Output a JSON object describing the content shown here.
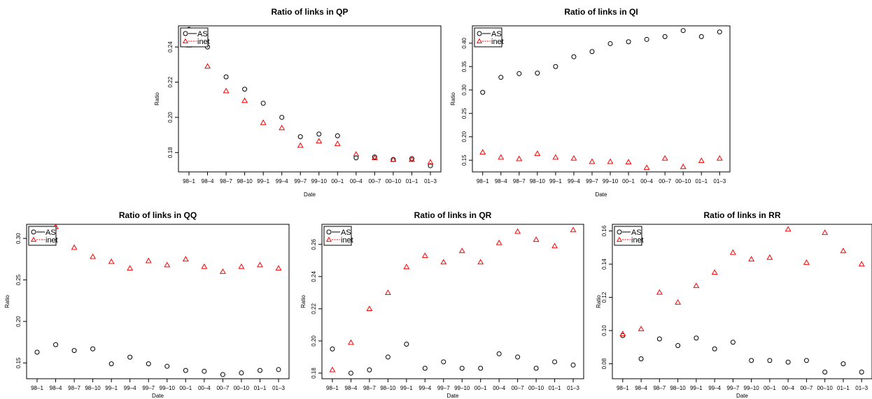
{
  "chart_data": [
    {
      "type": "scatter",
      "title": "Ratio of links in QP",
      "xlabel": "Date",
      "ylabel": "Ratio",
      "categories": [
        "98–1",
        "98–4",
        "98–7",
        "98–10",
        "99–1",
        "99–4",
        "99–7",
        "99–10",
        "00–1",
        "00–4",
        "00–7",
        "00–10",
        "01–1",
        "01–3"
      ],
      "yticks": [
        0.18,
        0.2,
        0.22,
        0.24
      ],
      "ylim": [
        0.169,
        0.252
      ],
      "legend": "top-left",
      "series": [
        {
          "name": "AS",
          "color": "#000000",
          "marker": "circle",
          "values": [
            0.25,
            0.24,
            0.223,
            0.216,
            0.208,
            0.2,
            0.189,
            0.1905,
            0.1895,
            0.177,
            0.1775,
            0.176,
            0.1765,
            0.1725
          ]
        },
        {
          "name": "inet",
          "color": "#ff0000",
          "marker": "triangle",
          "values": [
            0.241,
            0.229,
            0.215,
            0.2095,
            0.197,
            0.194,
            0.184,
            0.1865,
            0.185,
            0.179,
            0.177,
            0.176,
            0.176,
            0.1745
          ]
        }
      ]
    },
    {
      "type": "scatter",
      "title": "Ratio of links in QI",
      "xlabel": "Date",
      "ylabel": "Ratio",
      "categories": [
        "98–1",
        "98–4",
        "98–7",
        "98–10",
        "99–1",
        "99–4",
        "99–7",
        "99–10",
        "00–1",
        "00–4",
        "00–7",
        "00–10",
        "01–1",
        "01–3"
      ],
      "yticks": [
        0.15,
        0.2,
        0.25,
        0.3,
        0.35,
        0.4
      ],
      "ylim": [
        0.125,
        0.437
      ],
      "legend": "top-left",
      "series": [
        {
          "name": "AS",
          "color": "#000000",
          "marker": "circle",
          "values": [
            0.295,
            0.327,
            0.335,
            0.336,
            0.35,
            0.371,
            0.382,
            0.399,
            0.403,
            0.408,
            0.414,
            0.427,
            0.414,
            0.424
          ]
        },
        {
          "name": "inet",
          "color": "#ff0000",
          "marker": "triangle",
          "values": [
            0.167,
            0.156,
            0.153,
            0.164,
            0.156,
            0.154,
            0.147,
            0.147,
            0.146,
            0.134,
            0.154,
            0.136,
            0.149,
            0.154
          ]
        }
      ]
    },
    {
      "type": "scatter",
      "title": "Ratio of links in QQ",
      "xlabel": "Date",
      "ylabel": "Ratio",
      "categories": [
        "98–1",
        "98–4",
        "98–7",
        "98–10",
        "99–1",
        "99–4",
        "99–7",
        "99–10",
        "00–1",
        "00–4",
        "00–7",
        "00–10",
        "01–1",
        "01–3"
      ],
      "yticks": [
        0.15,
        0.2,
        0.25,
        0.3
      ],
      "ylim": [
        0.131,
        0.317
      ],
      "legend": "top-left",
      "series": [
        {
          "name": "AS",
          "color": "#000000",
          "marker": "circle",
          "values": [
            0.163,
            0.172,
            0.165,
            0.167,
            0.149,
            0.157,
            0.149,
            0.146,
            0.141,
            0.14,
            0.136,
            0.138,
            0.141,
            0.142
          ]
        },
        {
          "name": "inet",
          "color": "#ff0000",
          "marker": "triangle",
          "values": [
            0.309,
            0.314,
            0.289,
            0.278,
            0.272,
            0.264,
            0.273,
            0.268,
            0.275,
            0.266,
            0.26,
            0.266,
            0.268,
            0.264
          ]
        }
      ]
    },
    {
      "type": "scatter",
      "title": "Ratio of links in QR",
      "xlabel": "Date",
      "ylabel": "Ratio",
      "categories": [
        "98–1",
        "98–4",
        "98–7",
        "98–10",
        "99–1",
        "99–4",
        "99–7",
        "99–10",
        "00–1",
        "00–4",
        "00–7",
        "00–10",
        "01–1",
        "01–3"
      ],
      "yticks": [
        0.18,
        0.2,
        0.22,
        0.24,
        0.26
      ],
      "ylim": [
        0.1765,
        0.2725
      ],
      "legend": "top-left",
      "series": [
        {
          "name": "AS",
          "color": "#000000",
          "marker": "circle",
          "values": [
            0.195,
            0.18,
            0.182,
            0.19,
            0.198,
            0.183,
            0.187,
            0.183,
            0.183,
            0.192,
            0.19,
            0.183,
            0.187,
            0.185
          ]
        },
        {
          "name": "inet",
          "color": "#ff0000",
          "marker": "triangle",
          "values": [
            0.182,
            0.199,
            0.22,
            0.23,
            0.246,
            0.253,
            0.249,
            0.256,
            0.249,
            0.261,
            0.268,
            0.263,
            0.259,
            0.269
          ]
        }
      ]
    },
    {
      "type": "scatter",
      "title": "Ratio of links in RR",
      "xlabel": "Date",
      "ylabel": "Ratio",
      "categories": [
        "98–1",
        "98–4",
        "98–7",
        "98–10",
        "99–1",
        "99–4",
        "99–7",
        "99–10",
        "00–1",
        "00–4",
        "00–7",
        "00–10",
        "01–1",
        "01–3"
      ],
      "yticks": [
        0.08,
        0.1,
        0.12,
        0.14,
        0.16
      ],
      "ylim": [
        0.071,
        0.164
      ],
      "legend": "top-left",
      "series": [
        {
          "name": "AS",
          "color": "#000000",
          "marker": "circle",
          "values": [
            0.097,
            0.083,
            0.095,
            0.091,
            0.0955,
            0.089,
            0.093,
            0.082,
            0.082,
            0.081,
            0.082,
            0.075,
            0.08,
            0.075
          ]
        },
        {
          "name": "inet",
          "color": "#ff0000",
          "marker": "triangle",
          "values": [
            0.098,
            0.101,
            0.123,
            0.117,
            0.127,
            0.135,
            0.147,
            0.143,
            0.144,
            0.161,
            0.141,
            0.159,
            0.148,
            0.14
          ]
        }
      ]
    }
  ]
}
